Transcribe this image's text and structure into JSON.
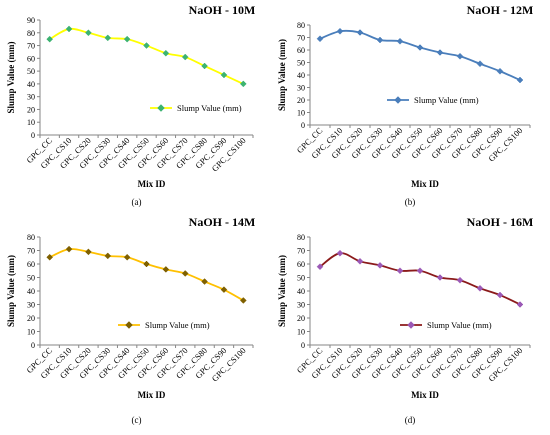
{
  "chart_data": [
    {
      "type": "line",
      "title": "NaOH - 10M",
      "xlabel": "Mix ID",
      "ylabel": "Slump Value (mm)",
      "caption": "(a)",
      "ylim": [
        0,
        90
      ],
      "ytick_step": 10,
      "categories": [
        "GPC_CC",
        "GPC_CS10",
        "GPC_CS20",
        "GPC_CS30",
        "GPC_CS40",
        "GPC_CS50",
        "GPC_CS60",
        "GPC_CS70",
        "GPC_CS80",
        "GPC_CS90",
        "GPC_CS100"
      ],
      "series": [
        {
          "name": "Slump Value (mm)",
          "values": [
            75,
            83,
            80,
            76,
            75,
            70,
            64,
            61,
            54,
            47,
            40
          ],
          "line_color": "#ffff00",
          "marker_color": "#3cb371",
          "marker": "diamond"
        }
      ],
      "legend": "bottom-right",
      "grid": false
    },
    {
      "type": "line",
      "title": "NaOH - 12M",
      "xlabel": "Mix ID",
      "ylabel": "Slump Value (mm)",
      "caption": "(b)",
      "ylim": [
        0,
        80
      ],
      "ytick_step": 10,
      "categories": [
        "GPC_CC",
        "GPC_CS10",
        "GPC_CS20",
        "GPC_CS30",
        "GPC_CS40",
        "GPC_CS50",
        "GPC_CS60",
        "GPC_CS70",
        "GPC_CS80",
        "GPC_CS90",
        "GPC_CS100"
      ],
      "series": [
        {
          "name": "Slump Value (mm)",
          "values": [
            69,
            75,
            74,
            68,
            67,
            62,
            58,
            55,
            49,
            43,
            36
          ],
          "line_color": "#4a7ebb",
          "marker_color": "#4a7ebb",
          "marker": "diamond"
        }
      ],
      "legend": "bottom-right",
      "grid": false
    },
    {
      "type": "line",
      "title": "NaOH - 14M",
      "xlabel": "Mix ID",
      "ylabel": "Slump Value (mm)",
      "caption": "(c)",
      "ylim": [
        0,
        80
      ],
      "ytick_step": 10,
      "categories": [
        "GPC_CC",
        "GPC_CS10",
        "GPC_CS20",
        "GPC_CS30",
        "GPC_CS40",
        "GPC_CS50",
        "GPC_CS60",
        "GPC_CS70",
        "GPC_CS80",
        "GPC_CS90",
        "GPC_CS100"
      ],
      "series": [
        {
          "name": "Slump Value (mm)",
          "values": [
            65,
            71,
            69,
            66,
            65,
            60,
            56,
            53,
            47,
            41,
            33
          ],
          "line_color": "#ffc000",
          "marker_color": "#7f6000",
          "marker": "diamond"
        }
      ],
      "legend": "bottom-right",
      "grid": false
    },
    {
      "type": "line",
      "title": "NaOH - 16M",
      "xlabel": "Mix ID",
      "ylabel": "Slump Value (mm)",
      "caption": "(d)",
      "ylim": [
        0,
        80
      ],
      "ytick_step": 10,
      "categories": [
        "GPC_CC",
        "GPC_CS10",
        "GPC_CS20",
        "GPC_CS30",
        "GPC_CS40",
        "GPC_CS50",
        "GPC_CS60",
        "GPC_CS70",
        "GPC_CS80",
        "GPC_CS90",
        "GPC_CS100"
      ],
      "series": [
        {
          "name": "Slump Value (mm)",
          "values": [
            58,
            68,
            62,
            59,
            55,
            55,
            50,
            48,
            42,
            37,
            30
          ],
          "line_color": "#8b1a1a",
          "marker_color": "#9b59b6",
          "marker": "diamond"
        }
      ],
      "legend": "bottom-right",
      "grid": false
    }
  ]
}
